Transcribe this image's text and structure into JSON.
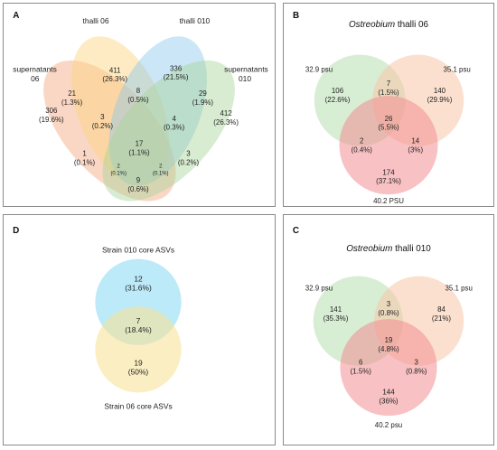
{
  "colors": {
    "peach": "#f5a77f",
    "yellow": "#fcd27a",
    "blue": "#8cc8ea",
    "green": "#a9d49a",
    "b_green": "#b8e0b0",
    "b_orange": "#fac6a8",
    "b_red": "#f28e92",
    "d_blue": "#8fdcf3",
    "d_yellow": "#f7e39a",
    "frame": "#8a8a8a"
  },
  "panel_a": {
    "letter": "A",
    "labels": {
      "supernatants_06_l1": "supernatants",
      "supernatants_06_l2": "06",
      "thalli_06": "thalli 06",
      "thalli_010": "thalli 010",
      "supernatants_010_l1": "supernatants",
      "supernatants_010_l2": "010"
    },
    "regions": [
      {
        "n": "306",
        "p": "(19.6%)"
      },
      {
        "n": "411",
        "p": "(26.3%)"
      },
      {
        "n": "336",
        "p": "(21.5%)"
      },
      {
        "n": "412",
        "p": "(26.3%)"
      },
      {
        "n": "21",
        "p": "(1.3%)"
      },
      {
        "n": "8",
        "p": "(0.5%)"
      },
      {
        "n": "29",
        "p": "(1.9%)"
      },
      {
        "n": "3",
        "p": "(0.2%)"
      },
      {
        "n": "4",
        "p": "(0.3%)"
      },
      {
        "n": "17",
        "p": "(1.1%)"
      },
      {
        "n": "1",
        "p": "(0.1%)"
      },
      {
        "n": "3",
        "p": "(0.2%)"
      },
      {
        "n": "2",
        "p": "(0.1%)"
      },
      {
        "n": "2",
        "p": "(0.1%)"
      },
      {
        "n": "9",
        "p": "(0.6%)"
      }
    ]
  },
  "panel_b": {
    "letter": "B",
    "title_italic": "Ostreobium",
    "title_rest": " thalli 06",
    "labels": {
      "left": "32.9 psu",
      "right": "35.1 psu",
      "bottom": "40.2 PSU"
    },
    "regions": [
      {
        "n": "106",
        "p": "(22.6%)"
      },
      {
        "n": "7",
        "p": "(1.5%)"
      },
      {
        "n": "140",
        "p": "(29.9%)"
      },
      {
        "n": "26",
        "p": "(5.5%)"
      },
      {
        "n": "2",
        "p": "(0.4%)"
      },
      {
        "n": "14",
        "p": "(3%)"
      },
      {
        "n": "174",
        "p": "(37.1%)"
      }
    ]
  },
  "panel_d": {
    "letter": "D",
    "top_label": "Strain 010 core ASVs",
    "bottom_label": "Strain 06 core ASVs",
    "regions": [
      {
        "n": "12",
        "p": "(31.6%)"
      },
      {
        "n": "7",
        "p": "(18.4%)"
      },
      {
        "n": "19",
        "p": "(50%)"
      }
    ]
  },
  "panel_c": {
    "letter": "C",
    "title_italic": "Ostreobium",
    "title_rest": " thalli 010",
    "labels": {
      "left": "32.9 psu",
      "right": "35.1 psu",
      "bottom": "40.2 psu"
    },
    "regions": [
      {
        "n": "141",
        "p": "(35.3%)"
      },
      {
        "n": "3",
        "p": "(0.8%)"
      },
      {
        "n": "84",
        "p": "(21%)"
      },
      {
        "n": "19",
        "p": "(4.8%)"
      },
      {
        "n": "6",
        "p": "(1.5%)"
      },
      {
        "n": "3",
        "p": "(0.8%)"
      },
      {
        "n": "144",
        "p": "(36%)"
      }
    ]
  }
}
